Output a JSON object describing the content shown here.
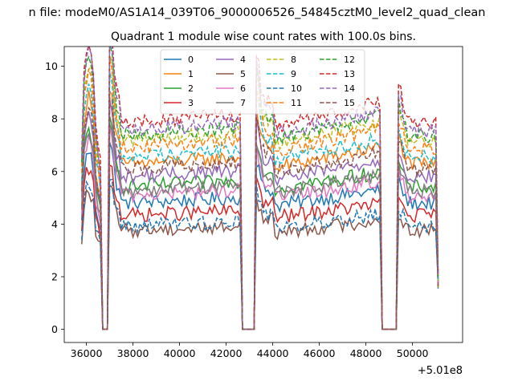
{
  "chart_data": {
    "type": "line",
    "suptitle": "n file: modeM0/AS1A14_039T06_9000006526_54845cztM0_level2_quad_clean",
    "title": "Quadrant 1 module wise count rates with 100.0s bins.",
    "xlabel": "",
    "ylabel": "",
    "x_offset_label": "+5.01e8",
    "xlim": [
      35050,
      52150
    ],
    "ylim": [
      -0.5,
      10.75
    ],
    "x_ticks": [
      36000,
      38000,
      40000,
      42000,
      44000,
      46000,
      48000,
      50000
    ],
    "x_tick_labels": [
      "36000",
      "38000",
      "40000",
      "42000",
      "44000",
      "46000",
      "48000",
      "50000"
    ],
    "y_ticks": [
      0,
      2,
      4,
      6,
      8,
      10
    ],
    "y_tick_labels": [
      "0",
      "2",
      "4",
      "6",
      "8",
      "10"
    ],
    "x_range": [
      35800,
      51100
    ],
    "bin_width": 100,
    "gaps": [
      [
        36700,
        36900
      ],
      [
        42700,
        43200
      ],
      [
        48700,
        49300
      ]
    ],
    "legend_position": "upper center",
    "legend_columns": 4,
    "series": [
      {
        "name": "0",
        "baseline": 5.05,
        "color": "#1f77b4",
        "dash": "solid"
      },
      {
        "name": "1",
        "baseline": 6.6,
        "color": "#ff7f0e",
        "dash": "solid"
      },
      {
        "name": "2",
        "baseline": 5.7,
        "color": "#2ca02c",
        "dash": "solid"
      },
      {
        "name": "3",
        "baseline": 4.55,
        "color": "#d62728",
        "dash": "solid"
      },
      {
        "name": "4",
        "baseline": 6.1,
        "color": "#9467bd",
        "dash": "solid"
      },
      {
        "name": "5",
        "baseline": 3.95,
        "color": "#8c564b",
        "dash": "solid"
      },
      {
        "name": "6",
        "baseline": 5.35,
        "color": "#e377c2",
        "dash": "solid"
      },
      {
        "name": "7",
        "baseline": 5.55,
        "color": "#7f7f7f",
        "dash": "solid"
      },
      {
        "name": "8",
        "baseline": 7.55,
        "color": "#bcbd22",
        "dash": "dashed"
      },
      {
        "name": "9",
        "baseline": 6.9,
        "color": "#17becf",
        "dash": "dashed"
      },
      {
        "name": "10",
        "baseline": 4.15,
        "color": "#1f77b4",
        "dash": "dashed"
      },
      {
        "name": "11",
        "baseline": 7.25,
        "color": "#ff7f0e",
        "dash": "dashed"
      },
      {
        "name": "12",
        "baseline": 7.75,
        "color": "#2ca02c",
        "dash": "dashed"
      },
      {
        "name": "13",
        "baseline": 8.25,
        "color": "#d62728",
        "dash": "dashed"
      },
      {
        "name": "14",
        "baseline": 7.95,
        "color": "#9467bd",
        "dash": "dashed"
      },
      {
        "name": "15",
        "baseline": 6.4,
        "color": "#8c564b",
        "dash": "dashed"
      }
    ]
  }
}
